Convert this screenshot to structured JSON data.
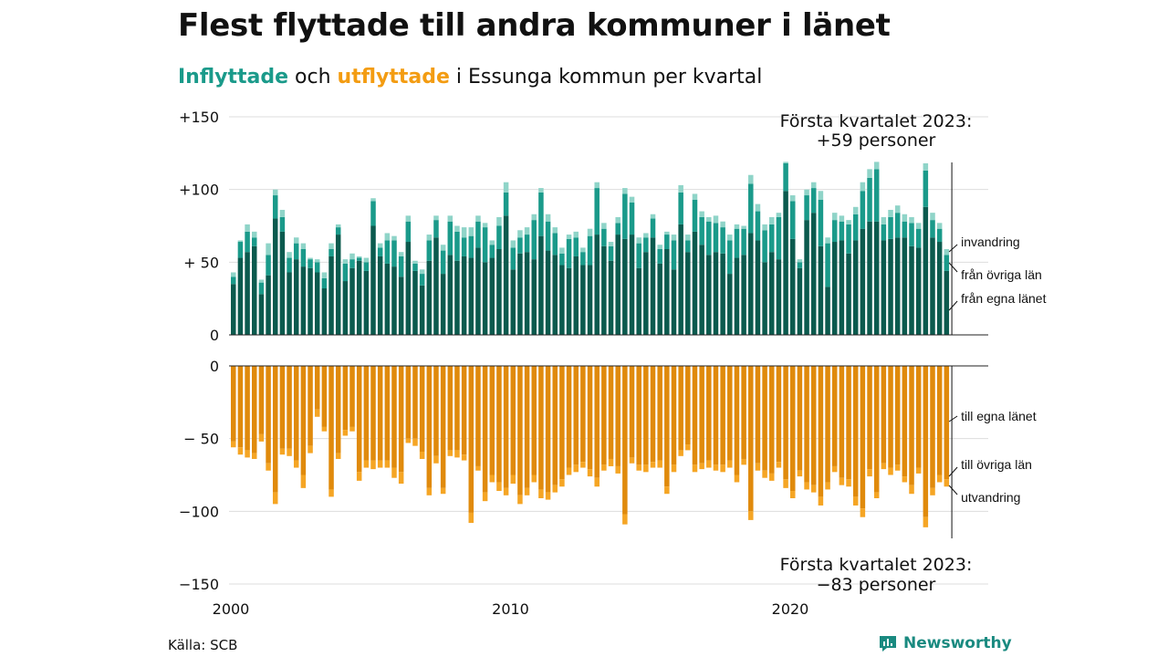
{
  "title": "Flest flyttade till andra kommuner i länet",
  "subtitle": {
    "in_word": "Inflyttade",
    "and_word": "och",
    "out_word": "utflyttade",
    "rest": "i Essunga kommun per kvartal"
  },
  "source": "Källa: SCB",
  "logo_text": "Newsworthy",
  "colors": {
    "in_own": "#0b5a4e",
    "in_other": "#1a9a8a",
    "in_immig": "#8fd4c8",
    "out_own": "#e08a0c",
    "out_other": "#f5a524",
    "out_emig": "#fad28a",
    "grid": "#dddddd"
  },
  "chart_data": {
    "type": "bar",
    "stacked": true,
    "x_start": 2000,
    "x_ticks": [
      "2000",
      "2010",
      "2020"
    ],
    "top_panel": {
      "ylim": [
        0,
        150
      ],
      "y_ticks": [
        "+150",
        "+100",
        "+ 50",
        "0"
      ],
      "series_labels": [
        "invandring",
        "från övriga län",
        "från egna länet"
      ],
      "annotation_line1": "Första kvartalet 2023:",
      "annotation_line2": "+59 personer"
    },
    "bottom_panel": {
      "ylim": [
        -150,
        0
      ],
      "y_ticks": [
        "0",
        "− 50",
        "−100",
        "−150"
      ],
      "series_labels": [
        "till egna länet",
        "till övriga län",
        "utvandring"
      ],
      "annotation_line1": "Första kvartalet 2023:",
      "annotation_line2": "−83 personer"
    },
    "in_total": [
      43,
      65,
      76,
      71,
      38,
      63,
      100,
      86,
      57,
      67,
      63,
      53,
      52,
      43,
      63,
      76,
      52,
      56,
      54,
      53,
      94,
      63,
      70,
      68,
      57,
      82,
      51,
      45,
      69,
      82,
      62,
      82,
      75,
      74,
      74,
      82,
      77,
      65,
      81,
      105,
      65,
      72,
      74,
      83,
      101,
      83,
      74,
      60,
      69,
      71,
      60,
      73,
      105,
      77,
      64,
      81,
      101,
      95,
      67,
      70,
      83,
      62,
      71,
      69,
      103,
      69,
      97,
      85,
      81,
      82,
      78,
      69,
      76,
      75,
      110,
      90,
      76,
      81,
      84,
      119,
      96,
      52,
      100,
      105,
      99,
      67,
      84,
      82,
      79,
      88,
      105,
      114,
      119,
      81,
      86,
      89,
      83,
      81,
      77,
      118,
      84,
      77,
      59
    ],
    "in_own": [
      35,
      53,
      57,
      61,
      28,
      41,
      80,
      71,
      43,
      52,
      47,
      46,
      43,
      32,
      54,
      69,
      37,
      46,
      51,
      44,
      75,
      54,
      49,
      47,
      40,
      64,
      44,
      34,
      51,
      67,
      42,
      55,
      51,
      54,
      53,
      60,
      50,
      53,
      59,
      82,
      45,
      56,
      57,
      52,
      68,
      58,
      55,
      48,
      46,
      54,
      48,
      48,
      69,
      61,
      51,
      69,
      66,
      69,
      46,
      57,
      67,
      49,
      59,
      45,
      76,
      57,
      71,
      62,
      55,
      57,
      56,
      42,
      53,
      55,
      70,
      65,
      50,
      57,
      52,
      99,
      66,
      46,
      79,
      84,
      61,
      33,
      64,
      65,
      56,
      65,
      73,
      78,
      78,
      65,
      66,
      67,
      67,
      61,
      60,
      88,
      67,
      64,
      44
    ],
    "in_other": [
      5,
      11,
      14,
      6,
      8,
      14,
      16,
      10,
      10,
      11,
      12,
      6,
      7,
      7,
      5,
      5,
      12,
      6,
      2,
      6,
      17,
      6,
      16,
      18,
      14,
      14,
      5,
      8,
      14,
      12,
      16,
      23,
      20,
      13,
      15,
      18,
      24,
      9,
      16,
      16,
      15,
      11,
      12,
      27,
      30,
      20,
      15,
      8,
      20,
      13,
      9,
      20,
      32,
      12,
      10,
      8,
      31,
      22,
      17,
      10,
      13,
      10,
      10,
      20,
      22,
      8,
      22,
      19,
      23,
      20,
      18,
      23,
      20,
      18,
      34,
      20,
      22,
      19,
      29,
      19,
      26,
      4,
      17,
      17,
      32,
      30,
      15,
      13,
      20,
      18,
      26,
      30,
      36,
      11,
      15,
      17,
      11,
      16,
      13,
      25,
      12,
      9,
      11
    ],
    "out_total": [
      56,
      61,
      63,
      64,
      52,
      72,
      95,
      61,
      62,
      70,
      84,
      60,
      35,
      45,
      90,
      64,
      48,
      45,
      79,
      70,
      71,
      70,
      70,
      77,
      81,
      53,
      55,
      64,
      89,
      67,
      88,
      62,
      63,
      65,
      108,
      72,
      93,
      80,
      86,
      89,
      81,
      95,
      89,
      80,
      91,
      92,
      87,
      83,
      75,
      73,
      70,
      76,
      83,
      72,
      69,
      74,
      109,
      67,
      72,
      73,
      70,
      70,
      88,
      73,
      62,
      58,
      73,
      71,
      70,
      72,
      73,
      70,
      80,
      68,
      106,
      72,
      77,
      79,
      70,
      84,
      91,
      76,
      85,
      87,
      96,
      85,
      73,
      82,
      83,
      96,
      104,
      76,
      91,
      71,
      75,
      72,
      80,
      88,
      74,
      111,
      89,
      80,
      83
    ],
    "out_own": [
      52,
      56,
      58,
      60,
      47,
      67,
      87,
      57,
      57,
      65,
      75,
      55,
      30,
      42,
      85,
      60,
      44,
      42,
      73,
      65,
      65,
      65,
      65,
      70,
      73,
      50,
      50,
      59,
      84,
      62,
      84,
      58,
      58,
      61,
      101,
      69,
      87,
      75,
      80,
      84,
      75,
      89,
      84,
      75,
      85,
      87,
      82,
      78,
      70,
      68,
      66,
      71,
      77,
      68,
      64,
      69,
      102,
      63,
      68,
      68,
      66,
      65,
      83,
      68,
      58,
      54,
      68,
      67,
      65,
      68,
      68,
      65,
      75,
      64,
      100,
      67,
      72,
      74,
      66,
      78,
      86,
      72,
      80,
      82,
      90,
      80,
      69,
      77,
      78,
      90,
      98,
      71,
      87,
      67,
      70,
      68,
      76,
      82,
      70,
      104,
      84,
      75,
      78
    ],
    "out_other": [
      4,
      5,
      5,
      4,
      5,
      5,
      8,
      4,
      5,
      5,
      9,
      5,
      5,
      3,
      5,
      4,
      4,
      3,
      6,
      5,
      6,
      5,
      5,
      7,
      8,
      3,
      5,
      5,
      5,
      5,
      4,
      4,
      5,
      4,
      7,
      3,
      6,
      5,
      6,
      5,
      6,
      6,
      5,
      5,
      6,
      5,
      5,
      5,
      5,
      5,
      4,
      5,
      6,
      4,
      5,
      5,
      7,
      4,
      4,
      5,
      4,
      5,
      5,
      5,
      4,
      4,
      5,
      4,
      5,
      4,
      5,
      5,
      5,
      4,
      6,
      5,
      5,
      5,
      4,
      6,
      5,
      4,
      5,
      5,
      6,
      5,
      4,
      5,
      5,
      6,
      6,
      5,
      4,
      4,
      5,
      4,
      4,
      6,
      4,
      7,
      5,
      5,
      5
    ]
  }
}
